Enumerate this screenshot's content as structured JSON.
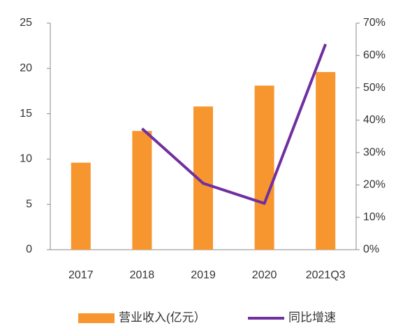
{
  "chart_data": {
    "type": "bar",
    "categories": [
      "2017",
      "2018",
      "2019",
      "2020",
      "2021Q3"
    ],
    "series": [
      {
        "name": "营业收入(亿元）",
        "color": "#f7962f",
        "type": "bar",
        "values": [
          9.6,
          13.1,
          15.8,
          18.1,
          19.6
        ]
      },
      {
        "name": "同比增速",
        "color": "#7030a0",
        "type": "line",
        "axis": "y2",
        "values": [
          null,
          37.4,
          20.5,
          14.3,
          63.5
        ]
      }
    ],
    "ylim": [
      0,
      25
    ],
    "yticks": [
      0,
      5,
      10,
      15,
      20,
      25
    ],
    "y2lim": [
      0,
      70
    ],
    "y2ticks": [
      {
        "value": 0,
        "label": "0%"
      },
      {
        "value": 10,
        "label": "10%"
      },
      {
        "value": 20,
        "label": "20%"
      },
      {
        "value": 30,
        "label": "30%"
      },
      {
        "value": 40,
        "label": "40%"
      },
      {
        "value": 50,
        "label": "50%"
      },
      {
        "value": 60,
        "label": "60%"
      },
      {
        "value": 70,
        "label": "70%"
      }
    ],
    "legend": "bottom"
  }
}
